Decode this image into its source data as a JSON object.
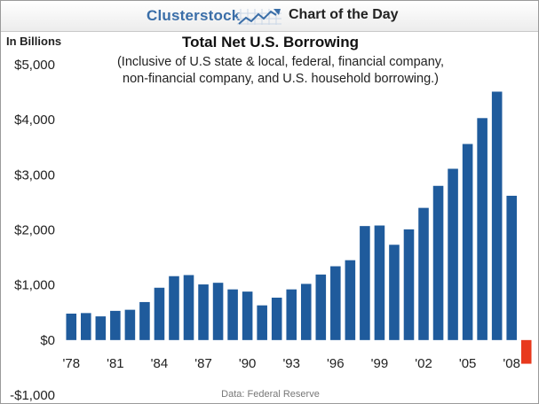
{
  "header": {
    "brand": "Clusterstock",
    "brand_icon": "rising-chart-icon",
    "title": "Chart of the Day",
    "brand_color": "#3a6ea8"
  },
  "chart_data": {
    "type": "bar",
    "title": "Total Net U.S. Borrowing",
    "subtitle_lines": [
      "(Inclusive of U.S state & local, federal, financial company,",
      "non-financial company, and U.S. household borrowing.)"
    ],
    "ylabel": "In Billions",
    "xlabel": "",
    "source": "Data: Federal Reserve",
    "ylim": [
      -1000,
      5000
    ],
    "yticks": [
      5000,
      4000,
      3000,
      2000,
      1000,
      0,
      -1000
    ],
    "ytick_labels": [
      "$5,000",
      "$4,000",
      "$3,000",
      "$2,000",
      "$1,000",
      "$0",
      "-$1,000"
    ],
    "categories": [
      "1978",
      "1979",
      "1980",
      "1981",
      "1982",
      "1983",
      "1984",
      "1985",
      "1986",
      "1987",
      "1988",
      "1989",
      "1990",
      "1991",
      "1992",
      "1993",
      "1994",
      "1995",
      "1996",
      "1997",
      "1998",
      "1999",
      "2000",
      "2001",
      "2002",
      "2003",
      "2004",
      "2005",
      "2006",
      "2007",
      "2008",
      "2009"
    ],
    "xtick_labels": [
      "'78",
      "'81",
      "'84",
      "'87",
      "'90",
      "'93",
      "'96",
      "'99",
      "'02",
      "'05",
      "'08"
    ],
    "xtick_categories": [
      "1978",
      "1981",
      "1984",
      "1987",
      "1990",
      "1993",
      "1996",
      "1999",
      "2002",
      "2005",
      "2008"
    ],
    "values": [
      480,
      490,
      430,
      530,
      550,
      690,
      950,
      1160,
      1180,
      1010,
      1040,
      920,
      880,
      630,
      770,
      920,
      1020,
      1190,
      1340,
      1450,
      2070,
      2080,
      1730,
      2010,
      2400,
      2800,
      3110,
      3560,
      4030,
      4510,
      2620,
      -430
    ],
    "positive_color": "#1f5b9c",
    "negative_color": "#e8391d",
    "grid": false,
    "legend": "none"
  }
}
